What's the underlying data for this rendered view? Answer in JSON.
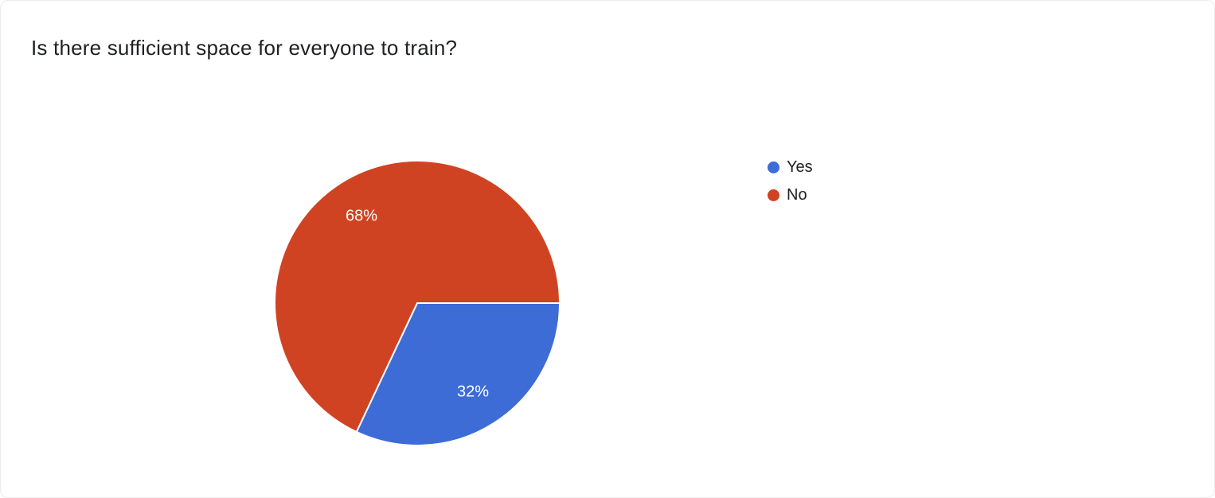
{
  "title": "Is there sufficient space for everyone to train?",
  "chart_data": {
    "type": "pie",
    "title": "Is there sufficient space for everyone to train?",
    "categories": [
      "Yes",
      "No"
    ],
    "values": [
      32,
      68
    ],
    "slice_labels": [
      "32%",
      "68%"
    ],
    "colors": [
      "#3d6cd6",
      "#d04322"
    ],
    "label_color": "#ffffff",
    "legend_position": "right",
    "start_angle_deg": 0
  }
}
